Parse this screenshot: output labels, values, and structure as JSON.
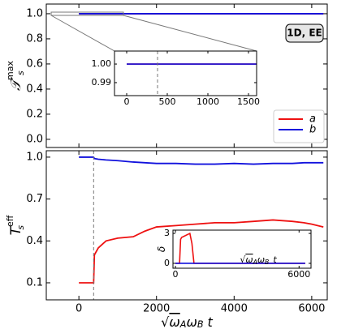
{
  "chart_data": [
    {
      "type": "line",
      "annotation": "1D, EE",
      "ylabel": {
        "text": "𝒯",
        "sub": "s",
        "sup": "max"
      },
      "x": [
        0,
        6300
      ],
      "series": [
        {
          "name": "a",
          "color": "#ee1111",
          "values": [
            1.0,
            1.0
          ]
        },
        {
          "name": "b",
          "color": "#1111dd",
          "values": [
            1.0,
            1.0
          ]
        }
      ],
      "xlim": [
        -840,
        6400
      ],
      "xticks": [
        0,
        2000,
        4000,
        6000
      ],
      "ylim": [
        -0.065,
        1.077
      ],
      "yticks": [
        {
          "value": 0,
          "label": "0.0"
        },
        0.2,
        0.4,
        0.6,
        0.8,
        {
          "value": 1,
          "label": "1.0"
        }
      ],
      "legend": "lower right"
    },
    {
      "type": "line",
      "ylabel": {
        "text": "T",
        "sub": "s",
        "sup": "eff"
      },
      "xlabel": {
        "root": "√",
        "w1": "ω",
        "s1": "A",
        "w2": "ω",
        "s2": "B",
        "var": "t"
      },
      "x": [
        0,
        100,
        200,
        300,
        380,
        400,
        500,
        700,
        1000,
        1400,
        1700,
        2000,
        2500,
        3000,
        3500,
        4000,
        4500,
        5000,
        5500,
        5800,
        6000,
        6300
      ],
      "series": [
        {
          "color": "#ee1111",
          "values": [
            0.1,
            0.1,
            0.1,
            0.1,
            0.1,
            0.3,
            0.35,
            0.4,
            0.42,
            0.43,
            0.47,
            0.5,
            0.51,
            0.52,
            0.53,
            0.53,
            0.54,
            0.55,
            0.54,
            0.53,
            0.52,
            0.5
          ]
        },
        {
          "color": "#1111dd",
          "values": [
            1.0,
            1.0,
            1.0,
            1.0,
            1.0,
            0.99,
            0.985,
            0.98,
            0.975,
            0.965,
            0.96,
            0.955,
            0.955,
            0.95,
            0.95,
            0.955,
            0.95,
            0.955,
            0.955,
            0.96,
            0.96,
            0.96
          ]
        }
      ],
      "xlim": [
        -840,
        6400
      ],
      "xticks": [
        0,
        2000,
        4000,
        6000
      ],
      "ylim": [
        -0.022,
        1.046
      ],
      "yticks": [
        0.1,
        0.4,
        0.7,
        {
          "value": 1,
          "label": "1.0"
        }
      ],
      "vline_x": 380
    },
    {
      "type": "line",
      "x": [
        0,
        1600
      ],
      "series": [
        {
          "color": "#ee1111",
          "values": [
            1.0,
            1.0
          ]
        },
        {
          "color": "#1111dd",
          "values": [
            1.0,
            1.0
          ]
        }
      ],
      "xlim": [
        -150,
        1600
      ],
      "xticks": [
        0,
        500,
        1000,
        1500
      ],
      "ylim": [
        0.983,
        1.007
      ],
      "yticks": [
        0.99,
        {
          "value": 1,
          "label": "1.00"
        }
      ],
      "vline_x": 380
    },
    {
      "type": "line",
      "ylabel": {
        "text": "δ"
      },
      "xlabel": {
        "root": "√",
        "w1": "ω",
        "s1": "A",
        "w2": "ω",
        "s2": "B",
        "var": "t"
      },
      "x": [
        0,
        100,
        200,
        250,
        300,
        700,
        800,
        900,
        6300
      ],
      "series": [
        {
          "color": "#ee1111",
          "values": [
            0,
            0,
            0,
            2.4,
            2.6,
            3.0,
            2.0,
            0,
            0
          ]
        },
        {
          "color": "#1111dd",
          "values": [
            0,
            0,
            0,
            0,
            0,
            0,
            0,
            0,
            0
          ]
        }
      ],
      "xlim": [
        -120,
        6580
      ],
      "xticks": [
        0,
        6000
      ],
      "ylim": [
        -0.49,
        3.33
      ],
      "yticks": [
        0,
        3
      ]
    }
  ]
}
